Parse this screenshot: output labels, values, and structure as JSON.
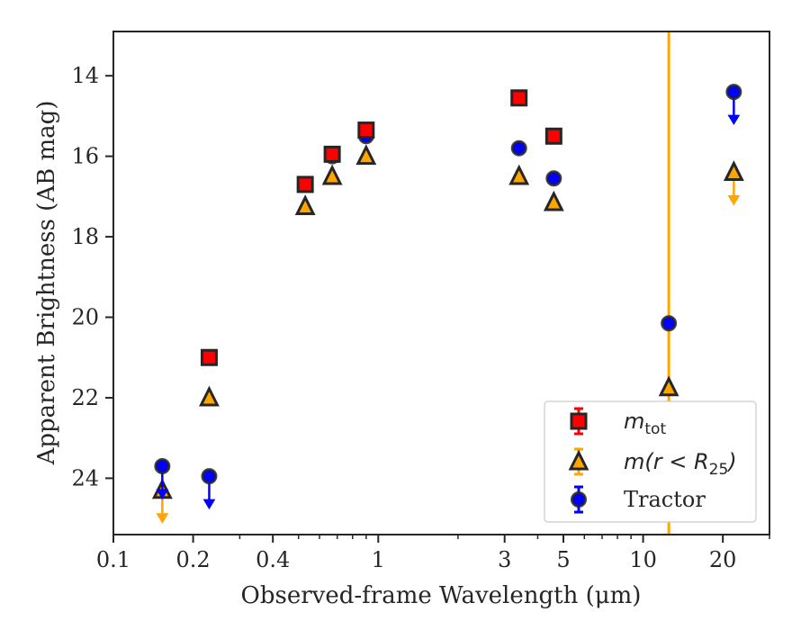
{
  "chart_data": {
    "type": "scatter",
    "title": "",
    "xlabel": "Observed-frame Wavelength (μm)",
    "ylabel": "Apparent Brightness (AB mag)",
    "xscale": "log",
    "xlim": [
      0.1,
      30
    ],
    "ylim": [
      25.4,
      12.9
    ],
    "yaxis_inverted": true,
    "grid": false,
    "legend_position": "lower-right",
    "x_ticks": [
      {
        "value": 0.1,
        "label": "0.1"
      },
      {
        "value": 0.2,
        "label": "0.2"
      },
      {
        "value": 0.4,
        "label": "0.4"
      },
      {
        "value": 1,
        "label": "1"
      },
      {
        "value": 3,
        "label": "3"
      },
      {
        "value": 5,
        "label": "5"
      },
      {
        "value": 10,
        "label": "10"
      },
      {
        "value": 20,
        "label": "20"
      }
    ],
    "y_ticks": [
      {
        "value": 14,
        "label": "14"
      },
      {
        "value": 16,
        "label": "16"
      },
      {
        "value": 18,
        "label": "18"
      },
      {
        "value": 20,
        "label": "20"
      },
      {
        "value": 22,
        "label": "22"
      },
      {
        "value": 24,
        "label": "24"
      }
    ],
    "vertical_line": {
      "x": 12.5,
      "color": "#ffa500"
    },
    "series": [
      {
        "name": "m_tot",
        "legend_base": "m",
        "legend_sub": "tot",
        "marker": "square",
        "color": "#ff0000",
        "edge": "#262626",
        "points": [
          {
            "x": 0.23,
            "y": 21.0
          },
          {
            "x": 0.53,
            "y": 16.7
          },
          {
            "x": 0.67,
            "y": 15.95
          },
          {
            "x": 0.9,
            "y": 15.35
          },
          {
            "x": 3.4,
            "y": 14.55
          },
          {
            "x": 4.6,
            "y": 15.5
          }
        ]
      },
      {
        "name": "m(r < R25)",
        "legend_base": "m(r < R",
        "legend_sub": "25",
        "legend_close": ")",
        "marker": "triangle",
        "color": "#ffa500",
        "edge": "#262626",
        "points": [
          {
            "x": 0.153,
            "y": 24.3,
            "upper_limit": true
          },
          {
            "x": 0.23,
            "y": 22.0
          },
          {
            "x": 0.53,
            "y": 17.25
          },
          {
            "x": 0.67,
            "y": 16.5
          },
          {
            "x": 0.9,
            "y": 16.0
          },
          {
            "x": 3.4,
            "y": 16.5
          },
          {
            "x": 4.6,
            "y": 17.15
          },
          {
            "x": 12.5,
            "y": 21.75
          },
          {
            "x": 22.0,
            "y": 16.4,
            "upper_limit": true
          }
        ]
      },
      {
        "name": "Tractor",
        "legend_base": "Tractor",
        "marker": "circle",
        "color": "#0000ff",
        "edge": "#262626",
        "points": [
          {
            "x": 0.153,
            "y": 23.7,
            "upper_limit": true
          },
          {
            "x": 0.23,
            "y": 23.95,
            "upper_limit": true
          },
          {
            "x": 0.53,
            "y": 16.7
          },
          {
            "x": 0.67,
            "y": 16.0
          },
          {
            "x": 0.9,
            "y": 15.5
          },
          {
            "x": 3.4,
            "y": 15.8
          },
          {
            "x": 4.6,
            "y": 16.55
          },
          {
            "x": 12.5,
            "y": 20.15
          },
          {
            "x": 22.0,
            "y": 14.4,
            "upper_limit": true
          }
        ]
      }
    ]
  }
}
